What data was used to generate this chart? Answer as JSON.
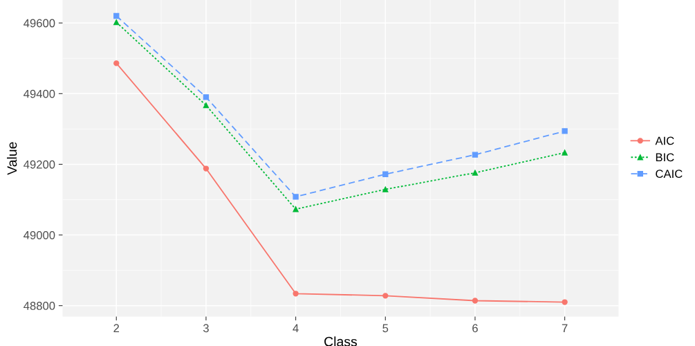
{
  "chart_data": {
    "type": "line",
    "xlabel": "Class",
    "ylabel": "Value",
    "x": [
      2,
      3,
      4,
      5,
      6,
      7
    ],
    "series": [
      {
        "name": "AIC",
        "color": "#f8766d",
        "marker": "circle",
        "line_style": "solid",
        "values": [
          49486,
          49188,
          48834,
          48828,
          48814,
          48810
        ]
      },
      {
        "name": "BIC",
        "color": "#00ba38",
        "marker": "triangle",
        "line_style": "dotted",
        "values": [
          49602,
          49367,
          49073,
          49129,
          49176,
          49233
        ]
      },
      {
        "name": "CAIC",
        "color": "#619cff",
        "marker": "square",
        "line_style": "dashed",
        "values": [
          49620,
          49390,
          49108,
          49172,
          49227,
          49294
        ]
      }
    ],
    "xlim": [
      1.4,
      7.6
    ],
    "xticks": [
      2,
      3,
      4,
      5,
      6,
      7
    ],
    "ylim": [
      48769,
      49665
    ],
    "yticks": [
      48800,
      49000,
      49200,
      49400,
      49600
    ],
    "grid": true,
    "legend": "right"
  }
}
